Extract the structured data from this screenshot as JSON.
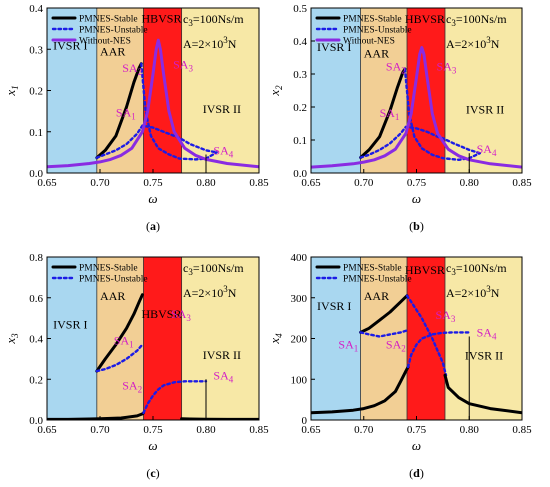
{
  "colors": {
    "ivsr1": "#a9d7f0",
    "aar": "#f2cf95",
    "hbvsr": "#ff1a1a",
    "ivsr2": "#f7e8a6",
    "stable": "#000000",
    "unstable": "#1b1be6",
    "without_nes": "#8a2be2",
    "sa_label": "#d31fc5"
  },
  "chart_data": [
    {
      "type": "line",
      "panel_caption": "(a)",
      "ylabel_main": "x",
      "ylabel_sub": "1",
      "xlabel": "ω",
      "xlim": [
        0.65,
        0.85
      ],
      "ylim": [
        0,
        0.4
      ],
      "xticks": [
        "0.65",
        "0.70",
        "0.75",
        "0.80",
        "0.85"
      ],
      "yticks": [
        "0.0",
        "0.1",
        "0.2",
        "0.3",
        "0.4"
      ],
      "legend": [
        "PMNES-Stable",
        "PMNES-Unstable",
        "Without-NES"
      ],
      "param_c": "c",
      "param_c_sub": "3",
      "param_c_val": "=100Ns/m",
      "param_a": "A=2×10",
      "param_a_sup": "3",
      "param_a_unit": "N",
      "regions": [
        {
          "label": "IVSR I",
          "x0": 0.65,
          "x1": 0.697,
          "color": "#a9d7f0"
        },
        {
          "label": "AAR",
          "x0": 0.697,
          "x1": 0.741,
          "color": "#f2cf95"
        },
        {
          "label": "HBVSR",
          "x0": 0.741,
          "x1": 0.777,
          "color": "#ff1a1a"
        },
        {
          "label": "IVSR II",
          "x0": 0.777,
          "x1": 0.85,
          "color": "#f7e8a6"
        }
      ],
      "region_label_pos": [
        [
          0.672,
          0.3
        ],
        [
          0.712,
          0.285
        ],
        [
          0.758,
          0.365
        ],
        [
          0.815,
          0.145
        ]
      ],
      "points": [
        {
          "label": "SA1",
          "x": 0.715,
          "y": 0.137
        },
        {
          "label": "SA2",
          "x": 0.721,
          "y": 0.245
        },
        {
          "label": "SA3",
          "x": 0.769,
          "y": 0.253
        },
        {
          "label": "SA4",
          "x": 0.807,
          "y": 0.045
        }
      ],
      "series": [
        {
          "name": "PMNES-Stable",
          "style": "stable",
          "x": [
            0.697,
            0.705,
            0.715,
            0.725,
            0.732,
            0.737,
            0.739
          ],
          "y": [
            0.037,
            0.055,
            0.09,
            0.16,
            0.22,
            0.255,
            0.265
          ]
        },
        {
          "name": "PMNES-Unstable",
          "style": "unstable",
          "x": [
            0.739,
            0.743,
            0.748,
            0.755,
            0.765,
            0.775,
            0.79,
            0.8,
            0.81
          ],
          "y": [
            0.265,
            0.15,
            0.09,
            0.06,
            0.045,
            0.035,
            0.033,
            0.035,
            0.05
          ]
        },
        {
          "name": "PMNES-Unstable",
          "style": "unstable",
          "x": [
            0.697,
            0.705,
            0.715,
            0.725,
            0.735,
            0.74,
            0.75,
            0.76,
            0.77,
            0.775,
            0.785,
            0.8,
            0.81
          ],
          "y": [
            0.037,
            0.045,
            0.055,
            0.07,
            0.095,
            0.115,
            0.11,
            0.1,
            0.09,
            0.085,
            0.07,
            0.055,
            0.05
          ]
        },
        {
          "name": "Without-NES",
          "style": "without",
          "x": [
            0.65,
            0.67,
            0.69,
            0.7,
            0.71,
            0.72,
            0.73,
            0.74,
            0.745,
            0.75,
            0.753,
            0.755,
            0.757,
            0.76,
            0.765,
            0.77,
            0.78,
            0.79,
            0.8,
            0.82,
            0.85
          ],
          "y": [
            0.015,
            0.018,
            0.023,
            0.027,
            0.033,
            0.043,
            0.06,
            0.1,
            0.15,
            0.24,
            0.3,
            0.322,
            0.3,
            0.24,
            0.15,
            0.1,
            0.06,
            0.043,
            0.033,
            0.023,
            0.015
          ]
        }
      ]
    },
    {
      "type": "line",
      "panel_caption": "(b)",
      "ylabel_main": "x",
      "ylabel_sub": "2",
      "xlabel": "ω",
      "xlim": [
        0.65,
        0.85
      ],
      "ylim": [
        0,
        0.5
      ],
      "xticks": [
        "0.65",
        "0.70",
        "0.75",
        "0.80",
        "0.85"
      ],
      "yticks": [
        "0.0",
        "0.1",
        "0.2",
        "0.3",
        "0.4",
        "0.5"
      ],
      "legend": [
        "PMNES-Stable",
        "PMNES-Unstable",
        "Without-NES"
      ],
      "param_c": "c",
      "param_c_sub": "3",
      "param_c_val": "=100Ns/m",
      "param_a": "A=2×10",
      "param_a_sup": "3",
      "param_a_unit": "N",
      "regions": [
        {
          "label": "IVSR I",
          "x0": 0.65,
          "x1": 0.697,
          "color": "#a9d7f0"
        },
        {
          "label": "AAR",
          "x0": 0.697,
          "x1": 0.741,
          "color": "#f2cf95"
        },
        {
          "label": "HBVSR",
          "x0": 0.741,
          "x1": 0.777,
          "color": "#ff1a1a"
        },
        {
          "label": "IVSR II",
          "x0": 0.777,
          "x1": 0.85,
          "color": "#f7e8a6"
        }
      ],
      "region_label_pos": [
        [
          0.672,
          0.37
        ],
        [
          0.712,
          0.35
        ],
        [
          0.758,
          0.455
        ],
        [
          0.815,
          0.18
        ]
      ],
      "points": [
        {
          "label": "SA1",
          "x": 0.715,
          "y": 0.17
        },
        {
          "label": "SA2",
          "x": 0.721,
          "y": 0.31
        },
        {
          "label": "SA3",
          "x": 0.769,
          "y": 0.31
        },
        {
          "label": "SA4",
          "x": 0.807,
          "y": 0.06
        }
      ],
      "series": [
        {
          "name": "PMNES-Stable",
          "style": "stable",
          "x": [
            0.697,
            0.705,
            0.715,
            0.725,
            0.732,
            0.737,
            0.739
          ],
          "y": [
            0.047,
            0.07,
            0.11,
            0.19,
            0.26,
            0.305,
            0.315
          ]
        },
        {
          "name": "PMNES-Unstable",
          "style": "unstable",
          "x": [
            0.739,
            0.743,
            0.748,
            0.755,
            0.765,
            0.775,
            0.79,
            0.8,
            0.81
          ],
          "y": [
            0.315,
            0.18,
            0.11,
            0.075,
            0.055,
            0.045,
            0.04,
            0.045,
            0.06
          ]
        },
        {
          "name": "PMNES-Unstable",
          "style": "unstable",
          "x": [
            0.697,
            0.705,
            0.715,
            0.725,
            0.735,
            0.74,
            0.75,
            0.76,
            0.77,
            0.775,
            0.785,
            0.8,
            0.81
          ],
          "y": [
            0.047,
            0.055,
            0.07,
            0.09,
            0.12,
            0.14,
            0.135,
            0.125,
            0.11,
            0.105,
            0.09,
            0.07,
            0.06
          ]
        },
        {
          "name": "Without-NES",
          "style": "without",
          "x": [
            0.65,
            0.67,
            0.69,
            0.7,
            0.71,
            0.72,
            0.73,
            0.74,
            0.745,
            0.75,
            0.753,
            0.755,
            0.757,
            0.76,
            0.765,
            0.77,
            0.78,
            0.79,
            0.8,
            0.82,
            0.85
          ],
          "y": [
            0.018,
            0.022,
            0.028,
            0.033,
            0.04,
            0.052,
            0.072,
            0.12,
            0.18,
            0.29,
            0.36,
            0.38,
            0.36,
            0.29,
            0.18,
            0.12,
            0.072,
            0.052,
            0.04,
            0.028,
            0.018
          ]
        }
      ]
    },
    {
      "type": "line",
      "panel_caption": "(c)",
      "ylabel_main": "x",
      "ylabel_sub": "3",
      "xlabel": "ω",
      "xlim": [
        0.65,
        0.85
      ],
      "ylim": [
        0,
        0.8
      ],
      "xticks": [
        "0.65",
        "0.70",
        "0.75",
        "0.80",
        "0.85"
      ],
      "yticks": [
        "0.0",
        "0.2",
        "0.4",
        "0.6",
        "0.8"
      ],
      "legend": [
        "PMNES-Stable",
        "PMNES-Unstable"
      ],
      "param_c": "c",
      "param_c_sub": "3",
      "param_c_val": "=100Ns/m",
      "param_a": "A=2×10",
      "param_a_sup": "3",
      "param_a_unit": "N",
      "regions": [
        {
          "label": "IVSR I",
          "x0": 0.65,
          "x1": 0.697,
          "color": "#a9d7f0"
        },
        {
          "label": "AAR",
          "x0": 0.697,
          "x1": 0.741,
          "color": "#f2cf95"
        },
        {
          "label": "HBVSR",
          "x0": 0.741,
          "x1": 0.777,
          "color": "#ff1a1a"
        },
        {
          "label": "IVSR II",
          "x0": 0.777,
          "x1": 0.85,
          "color": "#f7e8a6"
        }
      ],
      "region_label_pos": [
        [
          0.672,
          0.45
        ],
        [
          0.712,
          0.59
        ],
        [
          0.758,
          0.5
        ],
        [
          0.815,
          0.3
        ]
      ],
      "points": [
        {
          "label": "SA1",
          "x": 0.713,
          "y": 0.37
        },
        {
          "label": "SA2",
          "x": 0.721,
          "y": 0.15
        },
        {
          "label": "SA3",
          "x": 0.767,
          "y": 0.5
        },
        {
          "label": "SA4",
          "x": 0.807,
          "y": 0.2
        }
      ],
      "series": [
        {
          "name": "PMNES-Stable",
          "style": "stable",
          "x": [
            0.65,
            0.67,
            0.69,
            0.7,
            0.72,
            0.735,
            0.74,
            0.741
          ],
          "y": [
            0.003,
            0.003,
            0.005,
            0.006,
            0.01,
            0.02,
            0.03,
            0.035
          ]
        },
        {
          "name": "PMNES-Stable",
          "style": "stable",
          "x": [
            0.697,
            0.705,
            0.715,
            0.725,
            0.732,
            0.737,
            0.74
          ],
          "y": [
            0.24,
            0.3,
            0.37,
            0.45,
            0.52,
            0.58,
            0.615
          ]
        },
        {
          "name": "PMNES-Unstable",
          "style": "unstable",
          "x": [
            0.697,
            0.705,
            0.715,
            0.725,
            0.735,
            0.74
          ],
          "y": [
            0.24,
            0.25,
            0.27,
            0.3,
            0.34,
            0.37
          ]
        },
        {
          "name": "PMNES-Unstable",
          "style": "unstable",
          "x": [
            0.741,
            0.745,
            0.75,
            0.755,
            0.76,
            0.77,
            0.78,
            0.79,
            0.8
          ],
          "y": [
            0.035,
            0.08,
            0.12,
            0.15,
            0.17,
            0.185,
            0.19,
            0.19,
            0.19
          ]
        },
        {
          "name": "PMNES-Stable",
          "style": "stable",
          "x": [
            0.777,
            0.785,
            0.8,
            0.82,
            0.85
          ],
          "y": [
            0.006,
            0.005,
            0.004,
            0.003,
            0.003
          ]
        }
      ]
    },
    {
      "type": "line",
      "panel_caption": "(d)",
      "ylabel_main": "x",
      "ylabel_sub": "4",
      "xlabel": "ω",
      "xlim": [
        0.65,
        0.85
      ],
      "ylim": [
        0,
        400
      ],
      "xticks": [
        "0.65",
        "0.70",
        "0.75",
        "0.80",
        "0.85"
      ],
      "yticks": [
        "0",
        "100",
        "200",
        "300",
        "400"
      ],
      "legend": [
        "PMNES-Stable",
        "PMNES-Unstable"
      ],
      "param_c": "c",
      "param_c_sub": "3",
      "param_c_val": "=100Ns/m",
      "param_a": "A=2×10",
      "param_a_sup": "3",
      "param_a_unit": "N",
      "regions": [
        {
          "label": "IVSR I",
          "x0": 0.65,
          "x1": 0.697,
          "color": "#a9d7f0"
        },
        {
          "label": "AAR",
          "x0": 0.697,
          "x1": 0.741,
          "color": "#f2cf95"
        },
        {
          "label": "HBVSR",
          "x0": 0.741,
          "x1": 0.777,
          "color": "#ff1a1a"
        },
        {
          "label": "IVSR II",
          "x0": 0.777,
          "x1": 0.85,
          "color": "#f7e8a6"
        }
      ],
      "region_label_pos": [
        [
          0.672,
          270
        ],
        [
          0.712,
          295
        ],
        [
          0.758,
          358
        ],
        [
          0.814,
          148
        ]
      ],
      "points": [
        {
          "label": "SA1",
          "x": 0.676,
          "y": 175
        },
        {
          "label": "SA2",
          "x": 0.721,
          "y": 175
        },
        {
          "label": "SA3",
          "x": 0.768,
          "y": 248
        },
        {
          "label": "SA4",
          "x": 0.807,
          "y": 205
        }
      ],
      "series": [
        {
          "name": "PMNES-Stable",
          "style": "stable",
          "x": [
            0.65,
            0.67,
            0.69,
            0.7,
            0.71,
            0.72,
            0.73,
            0.735,
            0.74,
            0.742
          ],
          "y": [
            18,
            20,
            24,
            28,
            35,
            47,
            70,
            95,
            120,
            130
          ]
        },
        {
          "name": "PMNES-Stable",
          "style": "stable",
          "x": [
            0.697,
            0.705,
            0.715,
            0.725,
            0.735,
            0.741
          ],
          "y": [
            215,
            225,
            245,
            265,
            290,
            305
          ]
        },
        {
          "name": "PMNES-Unstable",
          "style": "unstable",
          "x": [
            0.697,
            0.705,
            0.715,
            0.725,
            0.735,
            0.741
          ],
          "y": [
            215,
            210,
            205,
            210,
            215,
            220
          ]
        },
        {
          "name": "PMNES-Unstable",
          "style": "unstable",
          "x": [
            0.742,
            0.745,
            0.75,
            0.755,
            0.76,
            0.765,
            0.775,
            0.785,
            0.8
          ],
          "y": [
            130,
            160,
            185,
            200,
            205,
            210,
            214,
            215,
            215
          ]
        },
        {
          "name": "PMNES-Unstable",
          "style": "unstable",
          "x": [
            0.741,
            0.745,
            0.75,
            0.755,
            0.76,
            0.765,
            0.77,
            0.775,
            0.778
          ],
          "y": [
            305,
            290,
            270,
            250,
            225,
            200,
            170,
            140,
            110
          ]
        },
        {
          "name": "PMNES-Stable",
          "style": "stable",
          "x": [
            0.777,
            0.78,
            0.79,
            0.8,
            0.82,
            0.85
          ],
          "y": [
            110,
            80,
            55,
            40,
            28,
            18
          ]
        }
      ]
    }
  ]
}
